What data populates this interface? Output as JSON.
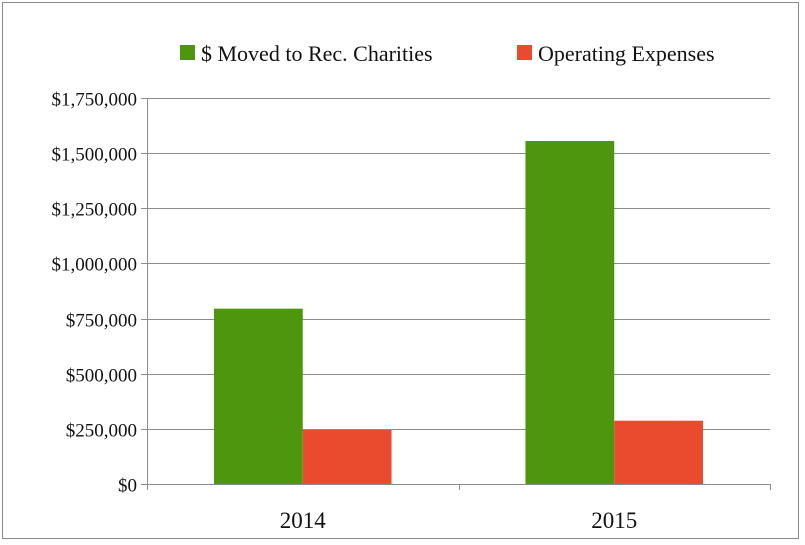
{
  "chart_data": {
    "type": "bar",
    "categories": [
      "2014",
      "2015"
    ],
    "series": [
      {
        "name": "$ Moved to Rec. Charities",
        "values": [
          795000,
          1555000
        ],
        "color": "#4d960e"
      },
      {
        "name": "Operating Expenses",
        "values": [
          245000,
          287000
        ],
        "color": "#ea4a2e"
      }
    ],
    "ylim": [
      0,
      1750000
    ],
    "yticks": [
      0,
      250000,
      500000,
      750000,
      1000000,
      1250000,
      1500000,
      1750000
    ],
    "ytick_labels": [
      "$0",
      "$250,000",
      "$500,000",
      "$750,000",
      "$1,000,000",
      "$1,250,000",
      "$1,500,000",
      "$1,750,000"
    ],
    "grid": true,
    "legend": "top-right",
    "title": "",
    "xlabel": "",
    "ylabel": ""
  }
}
